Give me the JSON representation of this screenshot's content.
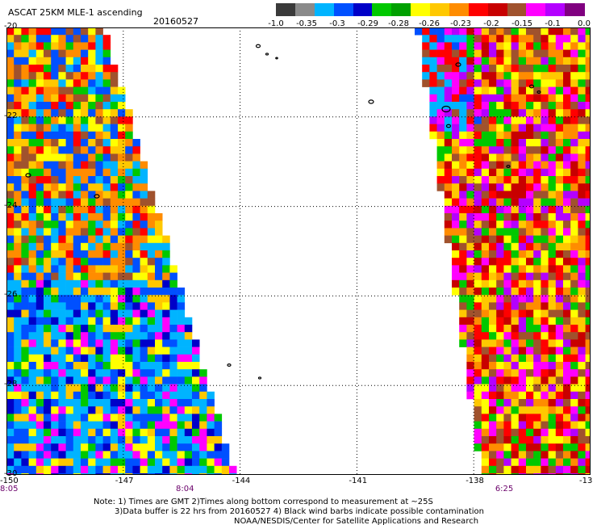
{
  "header": {
    "title": "ASCAT 25KM MLE-1 ascending",
    "date": "20160527"
  },
  "colorbar": {
    "labels": [
      "-1.0",
      "-0.35",
      "-0.3",
      "-0.29",
      "-0.28",
      "-0.26",
      "-0.23",
      "-0.2",
      "-0.15",
      "-0.1",
      "0.0"
    ],
    "colors": [
      "#3a3a3a",
      "#8a8a8a",
      "#00b4ff",
      "#0050ff",
      "#0000c8",
      "#00c800",
      "#00a000",
      "#ffff00",
      "#ffc800",
      "#ff8c00",
      "#ff0000",
      "#c80000",
      "#a0522d",
      "#ff00ff",
      "#b400ff",
      "#800080"
    ]
  },
  "axes": {
    "x_ticks": [
      "-150",
      "-147",
      "-144",
      "-141",
      "-138",
      "-13"
    ],
    "y_ticks": [
      "-20",
      "-22",
      "-24",
      "-26",
      "-28",
      "-30"
    ],
    "x_range": [
      -150,
      -135
    ],
    "y_range": [
      -30,
      -20
    ]
  },
  "times": [
    "8:05",
    "8:04",
    "6:25"
  ],
  "notes": {
    "line1": "Note: 1) Times are GMT 2)Times along bottom correspond to measurement at ~25S",
    "line2": "3)Data buffer is 22 hrs from 20160527 4) Black wind barbs indicate possible contamination",
    "line3": "NOAA/NESDIS/Center for Satellite Applications and Research"
  }
}
